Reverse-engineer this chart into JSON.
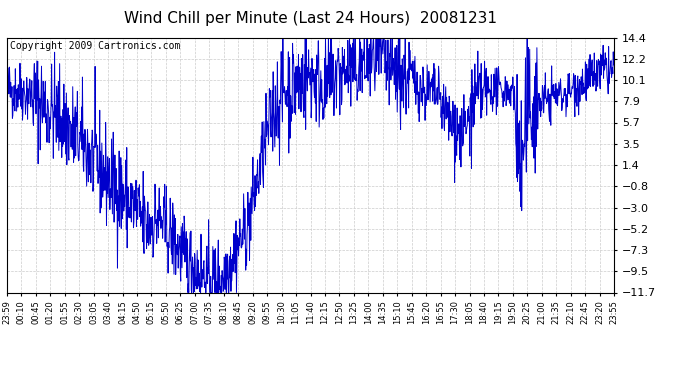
{
  "title": "Wind Chill per Minute (Last 24 Hours)  20081231",
  "copyright_text": "Copyright 2009 Cartronics.com",
  "line_color": "#0000cc",
  "background_color": "#ffffff",
  "plot_background": "#ffffff",
  "yticks": [
    14.4,
    12.2,
    10.1,
    7.9,
    5.7,
    3.5,
    1.4,
    -0.8,
    -3.0,
    -5.2,
    -7.3,
    -9.5,
    -11.7
  ],
  "ylim": [
    -11.7,
    14.4
  ],
  "xtick_labels": [
    "23:59",
    "00:10",
    "00:45",
    "01:20",
    "01:55",
    "02:30",
    "03:05",
    "03:40",
    "04:15",
    "04:50",
    "05:15",
    "05:50",
    "06:25",
    "07:00",
    "07:35",
    "08:10",
    "08:45",
    "09:20",
    "09:55",
    "10:30",
    "11:05",
    "11:40",
    "12:15",
    "12:50",
    "13:25",
    "14:00",
    "14:35",
    "15:10",
    "15:45",
    "16:20",
    "16:55",
    "17:30",
    "18:05",
    "18:40",
    "19:15",
    "19:50",
    "20:25",
    "21:00",
    "21:35",
    "22:10",
    "22:45",
    "23:20",
    "23:55"
  ],
  "grid_color": "#cccccc",
  "grid_style": "--",
  "title_fontsize": 11,
  "copyright_fontsize": 7,
  "ytick_fontsize": 8,
  "xtick_fontsize": 6
}
